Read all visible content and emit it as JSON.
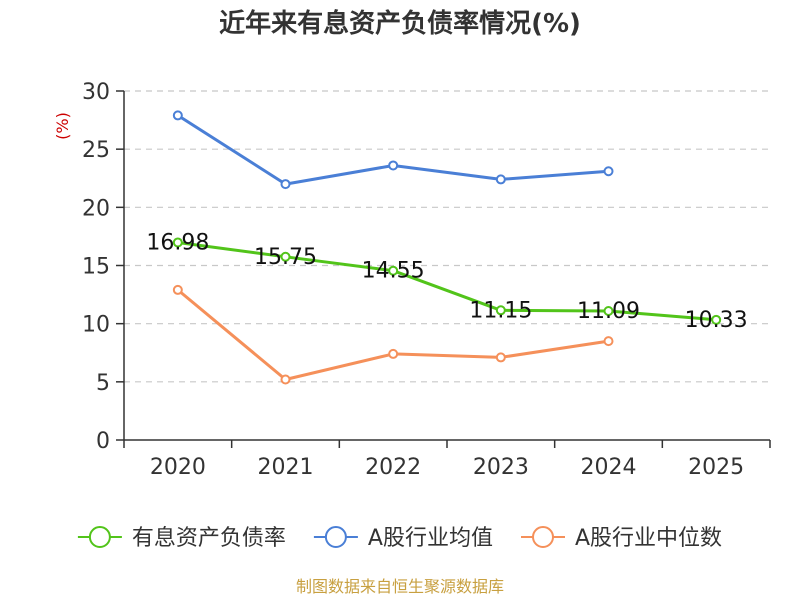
{
  "chart_data": {
    "type": "line",
    "title": "近年来有息资产负债率情况(%)",
    "ylabel": "(%)",
    "categories": [
      "2020",
      "2021",
      "2022",
      "2023",
      "2024",
      "2025"
    ],
    "ylim": [
      0,
      30
    ],
    "yticks": [
      0,
      5,
      10,
      15,
      20,
      25,
      30
    ],
    "grid": true,
    "legend_position": "bottom",
    "series": [
      {
        "name": "有息资产负债率",
        "color": "#52c41a",
        "values": [
          16.98,
          15.75,
          14.55,
          11.15,
          11.09,
          10.33
        ],
        "labels": [
          "16.98",
          "15.75",
          "14.55",
          "11.15",
          "11.09",
          "10.33"
        ]
      },
      {
        "name": "A股行业均值",
        "color": "#4a7fd6",
        "values": [
          27.9,
          22.0,
          23.6,
          22.4,
          23.1,
          null
        ]
      },
      {
        "name": "A股行业中位数",
        "color": "#f5905a",
        "values": [
          12.9,
          5.2,
          7.4,
          7.1,
          8.5,
          null
        ]
      }
    ]
  },
  "source": "制图数据来自恒生聚源数据库"
}
